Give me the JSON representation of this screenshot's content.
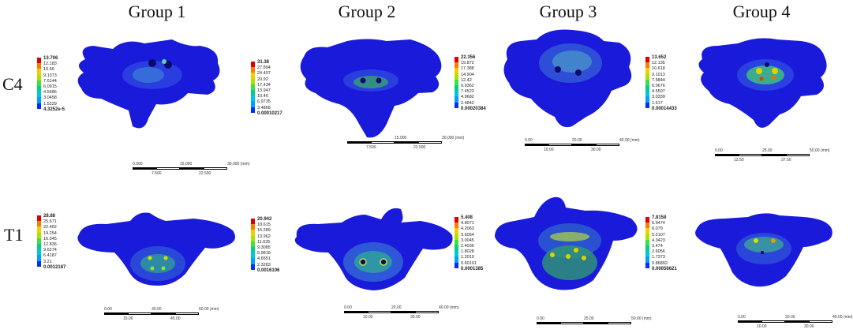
{
  "groups": [
    "Group 1",
    "Group 2",
    "Group 3",
    "Group 4"
  ],
  "rows": [
    "C4",
    "T1"
  ],
  "legends": {
    "c4": [
      {
        "max": "13.706",
        "ticks": [
          "12.183",
          "10.66",
          "9.1373",
          "7.6144",
          "6.0915",
          "4.5686",
          "3.0458",
          "1.5229"
        ],
        "min": "4.3252e-5"
      },
      {
        "max": "31.38",
        "ticks": [
          "27.894",
          "24.407",
          "20.92",
          "17.434",
          "13.947",
          "10.46",
          "6.9735",
          "3.4868"
        ],
        "min": "0.00010217"
      },
      {
        "max": "22.356",
        "ticks": [
          "19.872",
          "17.388",
          "14.904",
          "12.42",
          "9.9362",
          "7.4522",
          "4.9682",
          "2.4842"
        ],
        "min": "0.00020384"
      },
      {
        "max": "13.652",
        "ticks": [
          "12.135",
          "10.618",
          "9.1013",
          "7.5844",
          "6.0676",
          "4.5507",
          "3.0339",
          "1.517"
        ],
        "min": "0.00014433"
      }
    ],
    "t1": [
      {
        "max": "28.88",
        "ticks": [
          "25.671",
          "22.462",
          "19.254",
          "16.045",
          "12.836",
          "9.6274",
          "6.4187",
          "3.21"
        ],
        "min": "0.0012187"
      },
      {
        "max": "20.942",
        "ticks": [
          "18.615",
          "16.289",
          "13.962",
          "11.635",
          "9.3085",
          "6.9818",
          "4.6551",
          "2.3283"
        ],
        "min": "0.0016106"
      },
      {
        "max": "5.408",
        "ticks": [
          "4.8071",
          "4.2063",
          "3.6054",
          "3.0045",
          "2.4036",
          "1.8028",
          "1.2019",
          "0.60101"
        ],
        "min": "0.0001385"
      },
      {
        "max": "7.8158",
        "ticks": [
          "6.9474",
          "6.079",
          "5.2107",
          "4.3423",
          "3.474",
          "2.6056",
          "1.7373",
          "0.86892"
        ],
        "min": "0.00056621"
      }
    ]
  },
  "scales": {
    "c4": [
      {
        "top": [
          "0.000",
          "15.000",
          "30.000 (mm)"
        ],
        "bottom": [
          "7.500",
          "22.500"
        ]
      },
      {
        "top": [
          "15.000",
          "30.000 (mm)"
        ],
        "bottom": [
          "7.500",
          "22.500"
        ]
      },
      {
        "top": [
          "0.00",
          "20.00",
          "40.00 (mm)"
        ],
        "bottom": [
          "10.00",
          "30.00"
        ]
      },
      {
        "top": [
          "0.00",
          "25.00",
          "50.00 (mm)"
        ],
        "bottom": [
          "12.50",
          "37.50"
        ]
      }
    ],
    "t1": [
      {
        "top": [
          "0.00",
          "30.00",
          "60.00 (mm)"
        ],
        "bottom": [
          "15.00",
          "45.00"
        ]
      },
      {
        "top": [
          "0.00",
          "20.00",
          "40.00 (mm)"
        ],
        "bottom": [
          "10.00",
          "30.00"
        ]
      },
      {
        "top": [
          "0.00",
          "25.00",
          "50.00 (mm)"
        ],
        "bottom": []
      },
      {
        "top": [
          "0.00",
          "20.00",
          "40.00 (mm)"
        ],
        "bottom": [
          "10.00",
          "30.00"
        ]
      }
    ]
  },
  "colors": {
    "vertebra": "#1a1adb",
    "legend_bands": [
      "#e00000",
      "#ff7a00",
      "#f0d000",
      "#b0e000",
      "#40e040",
      "#00d08a",
      "#00c8d8",
      "#00a0ff",
      "#0030ff"
    ]
  }
}
